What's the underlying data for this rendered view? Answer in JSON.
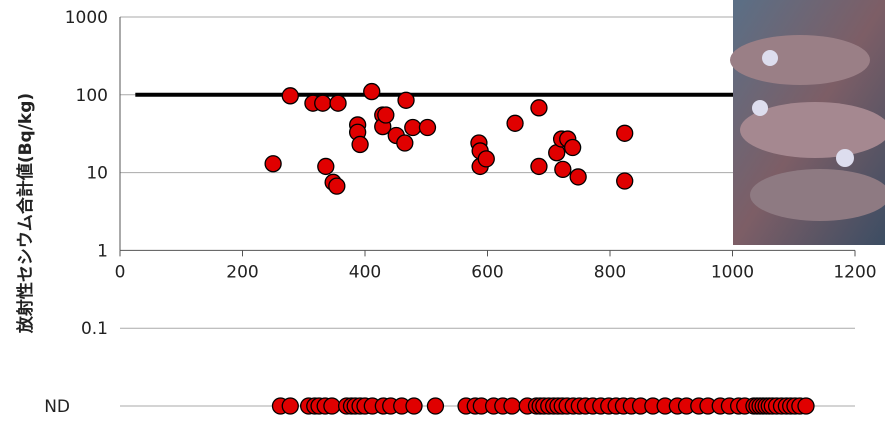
{
  "chart_data": {
    "type": "scatter",
    "y_label": "放射性セシウム合計値(Bq/kg)",
    "log_y": true,
    "xlim": [
      0,
      1200
    ],
    "ylim": [
      0.01,
      1000
    ],
    "xticks": [
      0,
      200,
      400,
      600,
      800,
      1000,
      1200
    ],
    "yticks": [
      1000,
      100,
      10,
      1,
      0.1,
      {
        "value": 0.01,
        "label": "ND"
      }
    ],
    "grid": true,
    "color": "#e00000",
    "limit_line": 100,
    "limit_x_start": 25,
    "x": [
      250,
      278,
      315,
      331,
      356,
      336,
      348,
      354,
      388,
      388,
      392,
      411,
      429,
      429,
      434,
      451,
      467,
      465,
      478,
      502,
      586,
      588,
      588,
      598,
      645,
      684,
      684,
      713,
      721,
      723,
      731,
      739,
      748,
      824,
      824
    ],
    "values": [
      13,
      97,
      78,
      78,
      78,
      12,
      7.5,
      6.7,
      41,
      33,
      23,
      110,
      55,
      39,
      55,
      30,
      85,
      24,
      38,
      38,
      24,
      19,
      12,
      15,
      43,
      68,
      12,
      18,
      27,
      11,
      27,
      21,
      8.8,
      32,
      7.8
    ],
    "nd_x": [
      262,
      278,
      308,
      318,
      325,
      335,
      346,
      370,
      378,
      384,
      392,
      400,
      412,
      430,
      442,
      460,
      480,
      515,
      565,
      580,
      590,
      610,
      625,
      640,
      665,
      680,
      686,
      692,
      700,
      708,
      715,
      722,
      730,
      740,
      750,
      760,
      772,
      785,
      798,
      810,
      822,
      835,
      850,
      870,
      890,
      910,
      925,
      945,
      960,
      980,
      995,
      1010,
      1020,
      1035,
      1040,
      1045,
      1050,
      1055,
      1060,
      1065,
      1072,
      1080,
      1088,
      1095,
      1102,
      1110,
      1120
    ]
  }
}
